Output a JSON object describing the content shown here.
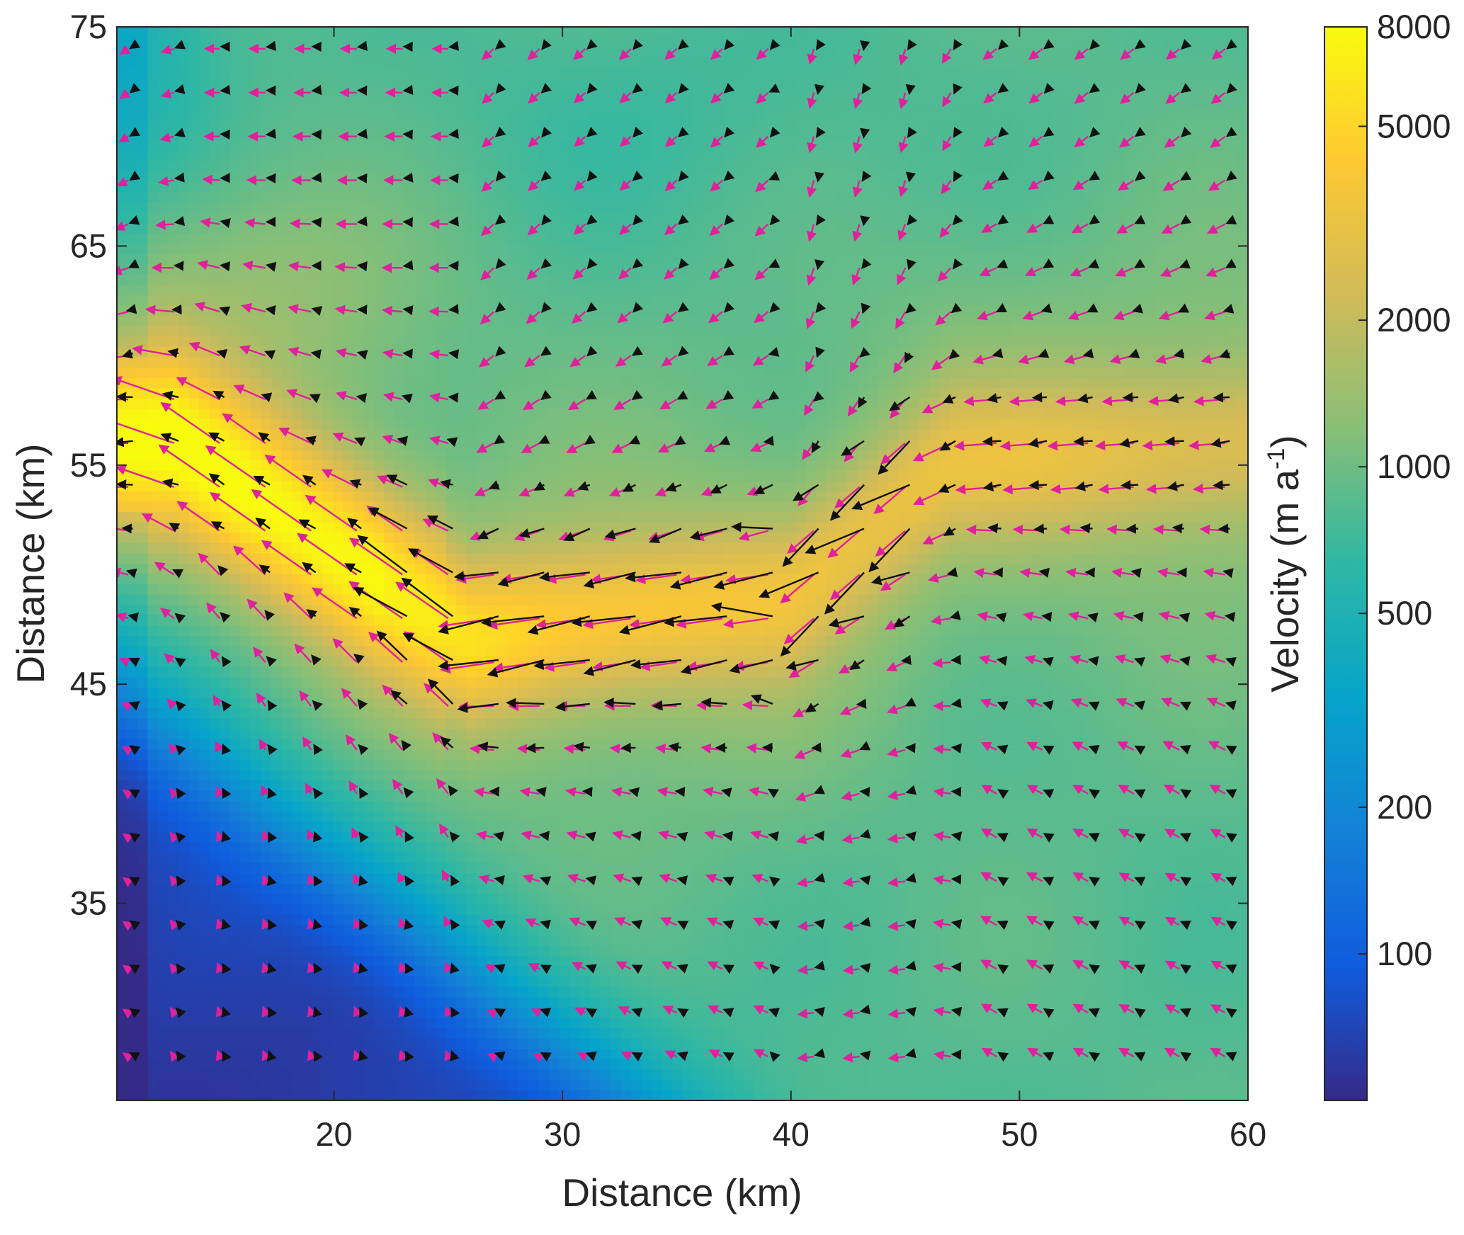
{
  "chart_data": {
    "type": "heatmap",
    "subtype": "velocity field with quiver arrows",
    "title": "",
    "xlabel": "Distance (km)",
    "ylabel": "Distance (km)",
    "xlim": [
      10.5,
      60
    ],
    "ylim": [
      26,
      75
    ],
    "x_ticks": [
      20,
      30,
      40,
      50,
      60
    ],
    "y_ticks": [
      35,
      45,
      55,
      65,
      75
    ],
    "colorbar": {
      "label": "Velocity (m a",
      "label_superscript": "-1",
      "label_suffix": ")",
      "scale": "log",
      "range": [
        50,
        8000
      ],
      "ticks": [
        100,
        200,
        500,
        1000,
        2000,
        5000,
        8000
      ],
      "colormap": "parula",
      "colors": [
        "#352a87",
        "#0f5cdd",
        "#1481d6",
        "#06a4ca",
        "#2eb7a4",
        "#87bf77",
        "#d1bb59",
        "#fec832",
        "#f9fb0e"
      ]
    },
    "arrow_colors": {
      "series_1": "#e0209c",
      "series_2": "#111111"
    },
    "grid": false,
    "legend": "none"
  }
}
